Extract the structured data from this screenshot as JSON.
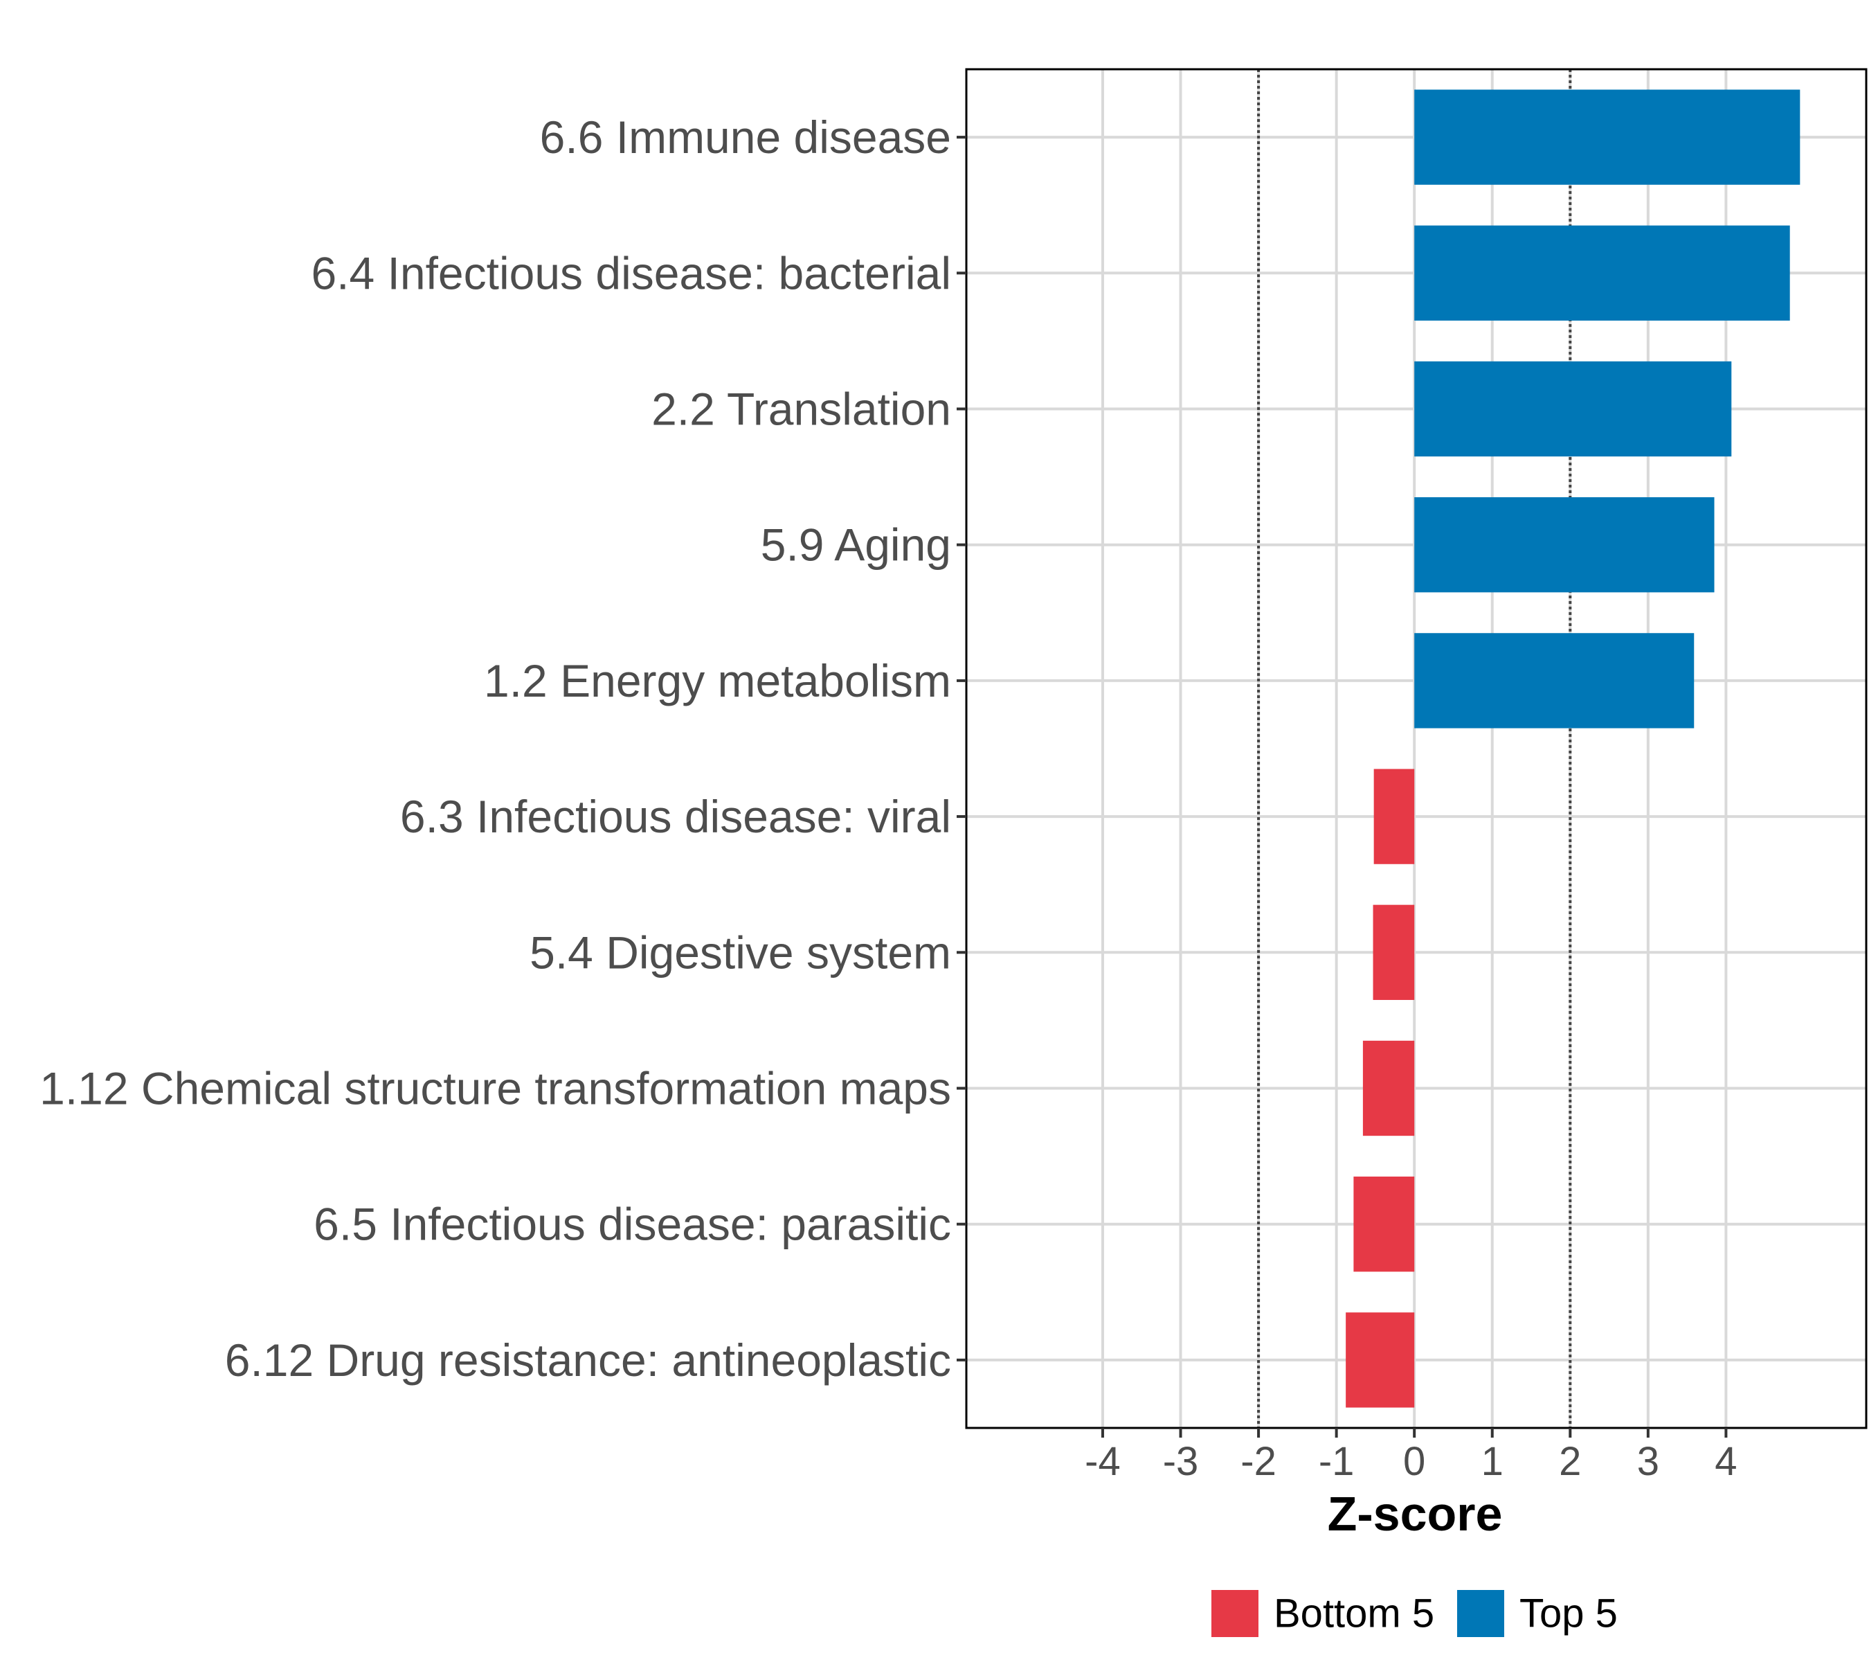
{
  "chart_data": {
    "type": "bar",
    "orientation": "horizontal",
    "title": "",
    "xlabel": "Z-score",
    "ylabel": "",
    "xlim": [
      -5.75,
      5.8
    ],
    "x_ticks": [
      -4,
      -3,
      -2,
      -1,
      0,
      1,
      2,
      3,
      4
    ],
    "x_tick_labels": [
      "-4",
      "-3",
      "-2",
      "-1",
      "0",
      "1",
      "2",
      "3",
      "4"
    ],
    "reference_lines": [
      -2,
      2
    ],
    "grid": true,
    "legend_position": "bottom",
    "categories": [
      "6.6 Immune disease",
      "6.4 Infectious disease: bacterial",
      "2.2 Translation",
      "5.9 Aging",
      "1.2 Energy metabolism",
      "6.3 Infectious disease: viral",
      "5.4 Digestive system",
      "1.12 Chemical structure transformation maps",
      "6.5 Infectious disease: parasitic",
      "6.12 Drug resistance: antineoplastic"
    ],
    "values": [
      4.95,
      4.82,
      4.07,
      3.85,
      3.59,
      -0.52,
      -0.53,
      -0.66,
      -0.78,
      -0.88
    ],
    "groups": [
      "Top 5",
      "Top 5",
      "Top 5",
      "Top 5",
      "Top 5",
      "Bottom 5",
      "Bottom 5",
      "Bottom 5",
      "Bottom 5",
      "Bottom 5"
    ],
    "legend": [
      {
        "name": "Bottom 5",
        "color": "#e63946"
      },
      {
        "name": "Top 5",
        "color": "#0077b6"
      }
    ]
  }
}
